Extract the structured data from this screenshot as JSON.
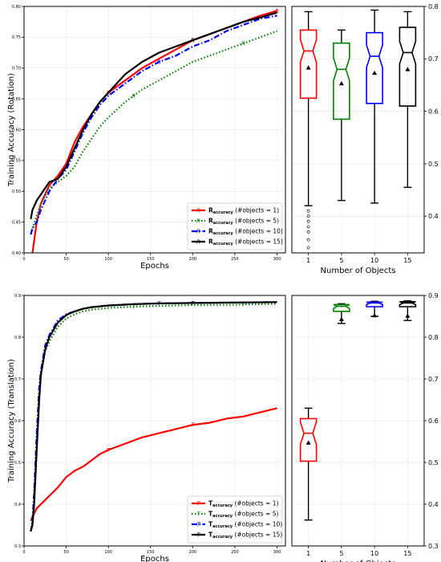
{
  "chart_data": [
    {
      "type": "line",
      "ylabel": "Training Accuracy (Rotation)",
      "xlabel": "Epochs",
      "xlim": [
        0,
        310
      ],
      "ylim": [
        0.4,
        0.8
      ],
      "xticks": [
        0,
        50,
        100,
        150,
        200,
        250,
        300
      ],
      "yticks": [
        0.4,
        0.45,
        0.5,
        0.55,
        0.6,
        0.65,
        0.7,
        0.75,
        0.8
      ],
      "grid": true,
      "legend_position": "lower-right",
      "series": [
        {
          "name_main": "R",
          "name_sub": "accuracy",
          "name_rest": " (#objects = 1)",
          "color": "#ff0000",
          "dash": "",
          "marker": "R",
          "marker_x": [
            100,
            200,
            300
          ],
          "x": [
            8,
            10,
            15,
            20,
            30,
            40,
            50,
            60,
            70,
            80,
            90,
            100,
            120,
            140,
            160,
            180,
            200,
            220,
            240,
            260,
            280,
            300
          ],
          "y": [
            0.38,
            0.4,
            0.45,
            0.48,
            0.51,
            0.525,
            0.545,
            0.58,
            0.605,
            0.625,
            0.645,
            0.66,
            0.68,
            0.7,
            0.715,
            0.73,
            0.745,
            0.755,
            0.765,
            0.775,
            0.785,
            0.793
          ]
        },
        {
          "name_main": "R",
          "name_sub": "accuracy",
          "name_rest": " (#objects = 5)",
          "color": "#008000",
          "dash": "1.5 2.5",
          "marker": "R",
          "marker_x": [
            130,
            260
          ],
          "x": [
            8,
            10,
            15,
            20,
            30,
            40,
            50,
            60,
            70,
            80,
            90,
            100,
            120,
            140,
            160,
            180,
            200,
            220,
            240,
            260,
            280,
            300
          ],
          "y": [
            0.43,
            0.44,
            0.46,
            0.48,
            0.505,
            0.515,
            0.525,
            0.54,
            0.565,
            0.585,
            0.605,
            0.62,
            0.645,
            0.665,
            0.68,
            0.695,
            0.71,
            0.72,
            0.73,
            0.74,
            0.75,
            0.76
          ]
        },
        {
          "name_main": "R",
          "name_sub": "accuracy",
          "name_rest": " (#objects = 10)",
          "color": "#0000ff",
          "dash": "7 2.5 1.5 2.5",
          "marker": "R",
          "marker_x": [
            160
          ],
          "x": [
            8,
            10,
            15,
            20,
            30,
            40,
            50,
            60,
            70,
            80,
            90,
            100,
            120,
            140,
            160,
            180,
            200,
            220,
            240,
            260,
            280,
            300
          ],
          "y": [
            0.43,
            0.44,
            0.45,
            0.47,
            0.5,
            0.52,
            0.535,
            0.565,
            0.595,
            0.62,
            0.64,
            0.655,
            0.675,
            0.695,
            0.71,
            0.72,
            0.735,
            0.745,
            0.76,
            0.77,
            0.78,
            0.785
          ]
        },
        {
          "name_main": "R",
          "name_sub": "accuracy",
          "name_rest": " (#objects = 15)",
          "color": "#000000",
          "dash": "",
          "marker": "R",
          "marker_x": [
            200
          ],
          "x": [
            8,
            10,
            15,
            20,
            30,
            40,
            50,
            60,
            70,
            80,
            90,
            100,
            120,
            140,
            160,
            180,
            200,
            220,
            240,
            260,
            280,
            300
          ],
          "y": [
            0.455,
            0.47,
            0.485,
            0.495,
            0.515,
            0.52,
            0.54,
            0.57,
            0.6,
            0.625,
            0.645,
            0.66,
            0.69,
            0.71,
            0.725,
            0.735,
            0.745,
            0.755,
            0.765,
            0.775,
            0.782,
            0.79
          ]
        }
      ]
    },
    {
      "type": "box",
      "xlabel": "Number of Objects",
      "ylim": [
        0.33,
        0.8
      ],
      "yticks": [
        0.4,
        0.5,
        0.6,
        0.7,
        0.8
      ],
      "categories": [
        "1",
        "5",
        "10",
        "15"
      ],
      "grid": true,
      "boxes": [
        {
          "color": "#ff0000",
          "whislo": 0.42,
          "q1": 0.625,
          "med": 0.715,
          "q3": 0.755,
          "whishi": 0.79,
          "mean": 0.683,
          "fliers": [
            0.34,
            0.355,
            0.37,
            0.38,
            0.39,
            0.4,
            0.41
          ]
        },
        {
          "color": "#008000",
          "whislo": 0.43,
          "q1": 0.585,
          "med": 0.68,
          "q3": 0.73,
          "whishi": 0.755,
          "mean": 0.653,
          "fliers": []
        },
        {
          "color": "#0000ff",
          "whislo": 0.425,
          "q1": 0.615,
          "med": 0.705,
          "q3": 0.75,
          "whishi": 0.793,
          "mean": 0.673,
          "fliers": []
        },
        {
          "color": "#000000",
          "whislo": 0.455,
          "q1": 0.61,
          "med": 0.712,
          "q3": 0.76,
          "whishi": 0.79,
          "mean": 0.68,
          "fliers": []
        }
      ]
    },
    {
      "type": "line",
      "ylabel": "Training Accuracy (Translation)",
      "xlabel": "Epochs",
      "xlim": [
        0,
        310
      ],
      "ylim": [
        0.3,
        0.9
      ],
      "xticks": [
        0,
        50,
        100,
        150,
        200,
        250,
        300
      ],
      "yticks": [
        0.3,
        0.4,
        0.5,
        0.6,
        0.7,
        0.8,
        0.9
      ],
      "grid": true,
      "legend_position": "lower-right",
      "series": [
        {
          "name_main": "T",
          "name_sub": "accuracy",
          "name_rest": " (#objects = 1)",
          "color": "#ff0000",
          "dash": "",
          "marker": "T",
          "marker_x": [
            100,
            200
          ],
          "x": [
            8,
            10,
            15,
            20,
            25,
            30,
            40,
            50,
            60,
            70,
            80,
            90,
            100,
            120,
            140,
            160,
            180,
            200,
            220,
            240,
            260,
            280,
            300
          ],
          "y": [
            0.36,
            0.37,
            0.39,
            0.4,
            0.41,
            0.42,
            0.44,
            0.465,
            0.48,
            0.49,
            0.505,
            0.52,
            0.53,
            0.545,
            0.56,
            0.57,
            0.58,
            0.59,
            0.595,
            0.605,
            0.61,
            0.62,
            0.63
          ]
        },
        {
          "name_main": "T",
          "name_sub": "accuracy",
          "name_rest": " (#objects = 5)",
          "color": "#008000",
          "dash": "1.5 2.5",
          "marker": "T",
          "marker_x": [
            130,
            260
          ],
          "x": [
            8,
            10,
            12,
            15,
            18,
            20,
            25,
            30,
            40,
            50,
            60,
            70,
            80,
            100,
            130,
            160,
            200,
            250,
            300
          ],
          "y": [
            0.335,
            0.36,
            0.42,
            0.55,
            0.66,
            0.71,
            0.765,
            0.79,
            0.825,
            0.845,
            0.855,
            0.862,
            0.866,
            0.87,
            0.873,
            0.875,
            0.877,
            0.878,
            0.88
          ]
        },
        {
          "name_main": "T",
          "name_sub": "accuracy",
          "name_rest": " (#objects = 10)",
          "color": "#0000ff",
          "dash": "7 2.5 1.5 2.5",
          "marker": "T",
          "marker_x": [
            160
          ],
          "x": [
            8,
            10,
            12,
            15,
            18,
            20,
            25,
            30,
            40,
            50,
            60,
            70,
            80,
            100,
            130,
            160,
            200,
            250,
            300
          ],
          "y": [
            0.335,
            0.36,
            0.43,
            0.57,
            0.68,
            0.72,
            0.78,
            0.805,
            0.84,
            0.855,
            0.862,
            0.868,
            0.872,
            0.876,
            0.879,
            0.881,
            0.882,
            0.883,
            0.884
          ]
        },
        {
          "name_main": "T",
          "name_sub": "accuracy",
          "name_rest": " (#objects = 15)",
          "color": "#000000",
          "dash": "",
          "marker": "T",
          "marker_x": [
            200
          ],
          "x": [
            8,
            10,
            12,
            15,
            18,
            20,
            25,
            30,
            40,
            50,
            60,
            70,
            80,
            100,
            130,
            160,
            200,
            250,
            300
          ],
          "y": [
            0.335,
            0.35,
            0.4,
            0.53,
            0.65,
            0.71,
            0.77,
            0.8,
            0.835,
            0.853,
            0.862,
            0.868,
            0.872,
            0.876,
            0.879,
            0.881,
            0.882,
            0.883,
            0.884
          ]
        }
      ]
    },
    {
      "type": "box",
      "xlabel": "Number of Objects",
      "ylim": [
        0.3,
        0.9
      ],
      "yticks": [
        0.3,
        0.4,
        0.5,
        0.6,
        0.7,
        0.8,
        0.9
      ],
      "categories": [
        "1",
        "5",
        "10",
        "15"
      ],
      "grid": true,
      "boxes": [
        {
          "color": "#ff0000",
          "whislo": 0.362,
          "q1": 0.503,
          "med": 0.57,
          "q3": 0.605,
          "whishi": 0.63,
          "mean": 0.547,
          "fliers": []
        },
        {
          "color": "#008000",
          "whislo": 0.833,
          "q1": 0.862,
          "med": 0.874,
          "q3": 0.878,
          "whishi": 0.88,
          "mean": 0.843,
          "fliers": []
        },
        {
          "color": "#0000ff",
          "whislo": 0.85,
          "q1": 0.873,
          "med": 0.882,
          "q3": 0.884,
          "whishi": 0.886,
          "mean": 0.852,
          "fliers": []
        },
        {
          "color": "#000000",
          "whislo": 0.84,
          "q1": 0.873,
          "med": 0.882,
          "q3": 0.885,
          "whishi": 0.887,
          "mean": 0.851,
          "fliers": []
        }
      ]
    }
  ]
}
